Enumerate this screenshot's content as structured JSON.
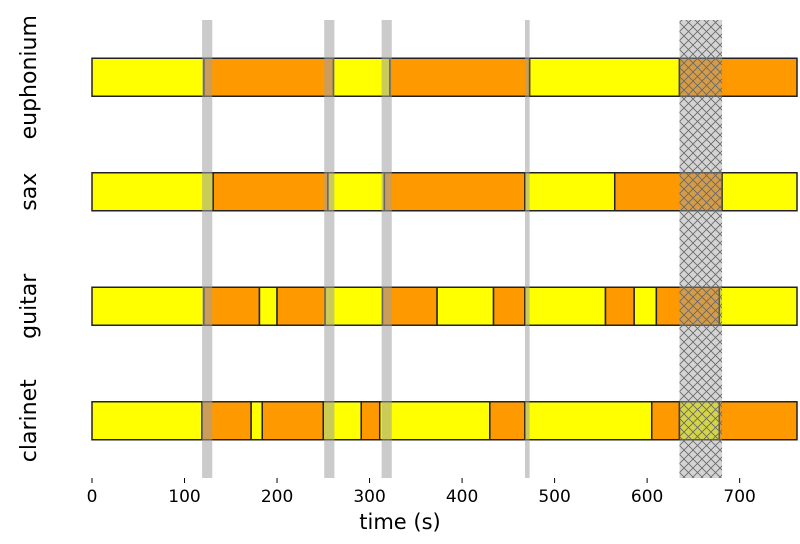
{
  "chart_data": {
    "type": "segments",
    "xlabel": "time (s)",
    "xlim": [
      0,
      762
    ],
    "xticks": [
      0,
      100,
      200,
      300,
      400,
      500,
      600,
      700
    ],
    "rows": [
      {
        "name": "euphonium",
        "segments": [
          {
            "start": 0,
            "end": 121,
            "color": "#ffff00"
          },
          {
            "start": 121,
            "end": 261,
            "color": "#ff9900"
          },
          {
            "start": 261,
            "end": 322,
            "color": "#ffff00"
          },
          {
            "start": 322,
            "end": 473,
            "color": "#ff9900"
          },
          {
            "start": 473,
            "end": 635,
            "color": "#ffff00"
          },
          {
            "start": 635,
            "end": 762,
            "color": "#ff9900"
          }
        ]
      },
      {
        "name": "sax",
        "segments": [
          {
            "start": 0,
            "end": 131,
            "color": "#ffff00"
          },
          {
            "start": 131,
            "end": 255,
            "color": "#ff9900"
          },
          {
            "start": 255,
            "end": 316,
            "color": "#ffff00"
          },
          {
            "start": 316,
            "end": 468,
            "color": "#ff9900"
          },
          {
            "start": 468,
            "end": 565,
            "color": "#ffff00"
          },
          {
            "start": 565,
            "end": 681,
            "color": "#ff9900"
          },
          {
            "start": 681,
            "end": 762,
            "color": "#ffff00"
          }
        ]
      },
      {
        "name": "guitar",
        "segments": [
          {
            "start": 0,
            "end": 121,
            "color": "#ffff00"
          },
          {
            "start": 121,
            "end": 181,
            "color": "#ff9900"
          },
          {
            "start": 181,
            "end": 200,
            "color": "#ffff00"
          },
          {
            "start": 200,
            "end": 252,
            "color": "#ff9900"
          },
          {
            "start": 252,
            "end": 314,
            "color": "#ffff00"
          },
          {
            "start": 314,
            "end": 373,
            "color": "#ff9900"
          },
          {
            "start": 373,
            "end": 434,
            "color": "#ffff00"
          },
          {
            "start": 434,
            "end": 468,
            "color": "#ff9900"
          },
          {
            "start": 468,
            "end": 555,
            "color": "#ffff00"
          },
          {
            "start": 555,
            "end": 586,
            "color": "#ff9900"
          },
          {
            "start": 586,
            "end": 610,
            "color": "#ffff00"
          },
          {
            "start": 610,
            "end": 678,
            "color": "#ff9900"
          },
          {
            "start": 678,
            "end": 762,
            "color": "#ffff00"
          }
        ]
      },
      {
        "name": "clarinet",
        "segments": [
          {
            "start": 0,
            "end": 119,
            "color": "#ffff00"
          },
          {
            "start": 119,
            "end": 172,
            "color": "#ff9900"
          },
          {
            "start": 172,
            "end": 184,
            "color": "#ffff00"
          },
          {
            "start": 184,
            "end": 250,
            "color": "#ff9900"
          },
          {
            "start": 250,
            "end": 291,
            "color": "#ffff00"
          },
          {
            "start": 291,
            "end": 311,
            "color": "#ff9900"
          },
          {
            "start": 311,
            "end": 430,
            "color": "#ffff00"
          },
          {
            "start": 430,
            "end": 468,
            "color": "#ff9900"
          },
          {
            "start": 468,
            "end": 605,
            "color": "#ffff00"
          },
          {
            "start": 605,
            "end": 635,
            "color": "#ff9900"
          },
          {
            "start": 635,
            "end": 678,
            "color": "#ffff00"
          },
          {
            "start": 678,
            "end": 762,
            "color": "#ff9900"
          }
        ]
      }
    ],
    "spans": [
      {
        "start": 119,
        "end": 130
      },
      {
        "start": 251,
        "end": 262
      },
      {
        "start": 313,
        "end": 324
      },
      {
        "start": 468,
        "end": 473
      }
    ],
    "span_color": "#a0a0a0",
    "hatched_span": {
      "start": 635,
      "end": 681
    }
  }
}
